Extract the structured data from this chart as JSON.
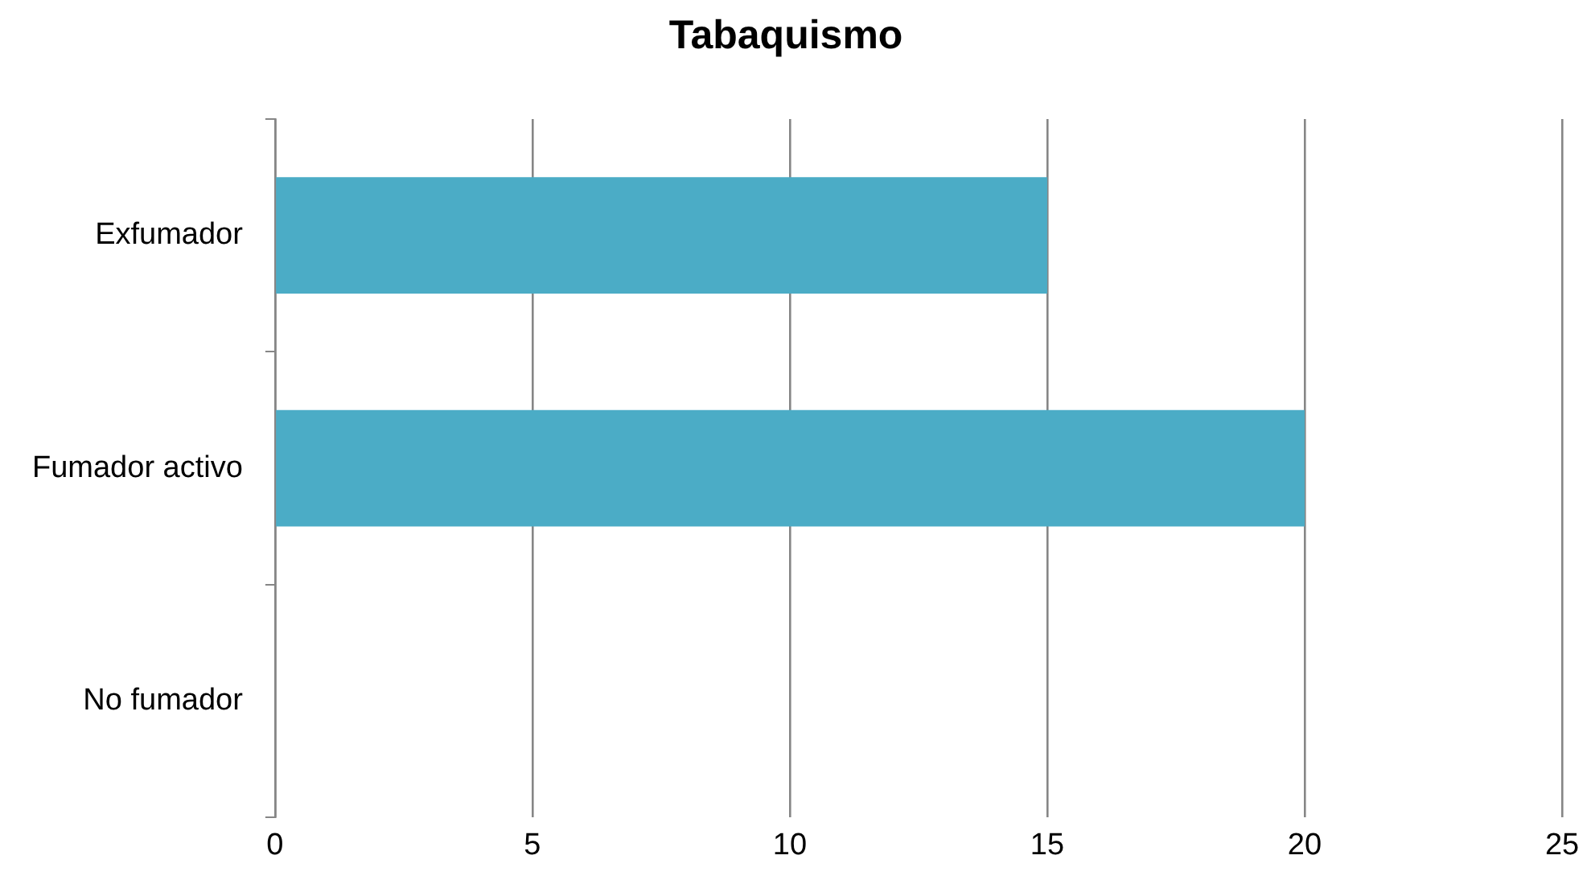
{
  "chart_data": {
    "type": "bar",
    "orientation": "horizontal",
    "title": "Tabaquismo",
    "categories": [
      "Exfumador",
      "Fumador activo",
      "No fumador"
    ],
    "values": [
      15,
      20,
      0
    ],
    "color": "#4bacc6",
    "xlim": [
      0,
      25
    ],
    "xticks": [
      0,
      5,
      10,
      15,
      20,
      25
    ],
    "grid": "x"
  }
}
